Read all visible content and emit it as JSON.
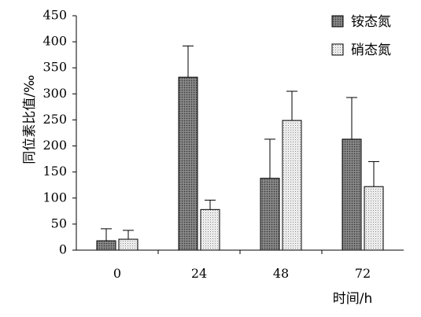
{
  "chart_data": {
    "type": "bar",
    "categories": [
      "0",
      "24",
      "48",
      "72"
    ],
    "series": [
      {
        "name": "铵态氮",
        "values": [
          18,
          332,
          138,
          213
        ],
        "errors": [
          23,
          60,
          75,
          80
        ],
        "pattern": "dark-dots",
        "color": "#6e6e6e"
      },
      {
        "name": "硝态氮",
        "values": [
          21,
          78,
          249,
          122
        ],
        "errors": [
          17,
          18,
          56,
          48
        ],
        "pattern": "light-dots",
        "color": "#e2e2e2"
      }
    ],
    "xlabel": "时间/h",
    "ylabel": "同位素比值/‰",
    "ylim": [
      0,
      450
    ],
    "yticks": [
      "0",
      "50",
      "100",
      "150",
      "200",
      "250",
      "300",
      "350",
      "400",
      "450"
    ],
    "error_bars": "upper",
    "legend_position": "top-right",
    "grid": false
  }
}
